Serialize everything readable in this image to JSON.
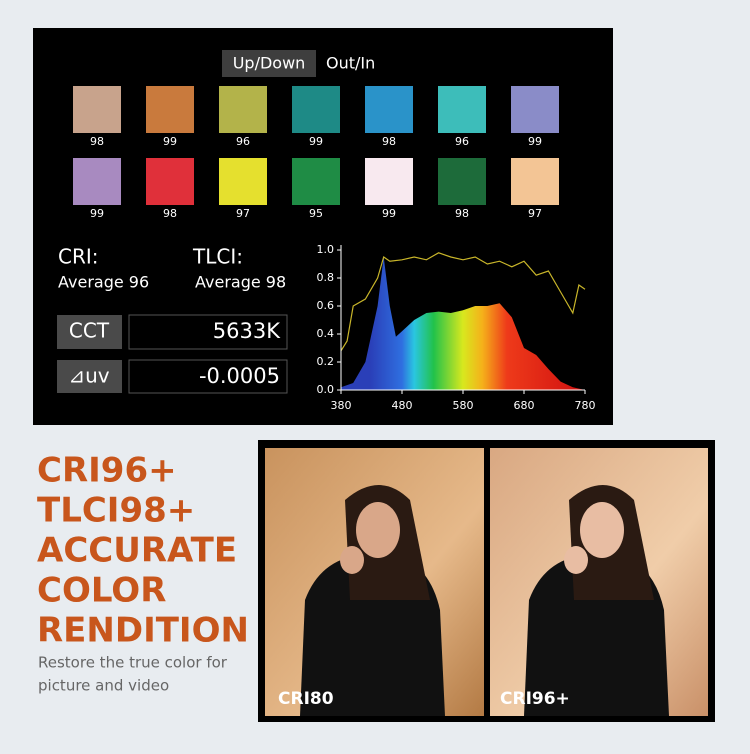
{
  "tabs": [
    "Up/Down",
    "Out/In"
  ],
  "swatches": [
    [
      {
        "color": "#c8a38c",
        "value": "98"
      },
      {
        "color": "#c97a3d",
        "value": "99"
      },
      {
        "color": "#b3b34a",
        "value": "96"
      },
      {
        "color": "#1e8a86",
        "value": "99"
      },
      {
        "color": "#2a93c9",
        "value": "98"
      },
      {
        "color": "#3dbdba",
        "value": "96"
      },
      {
        "color": "#8a8cc8",
        "value": "99"
      }
    ],
    [
      {
        "color": "#a88ac0",
        "value": "99"
      },
      {
        "color": "#e0303a",
        "value": "98"
      },
      {
        "color": "#e5e02e",
        "value": "97"
      },
      {
        "color": "#1f8c45",
        "value": "95"
      },
      {
        "color": "#f8e9ef",
        "value": "99"
      },
      {
        "color": "#1d6b3a",
        "value": "98"
      },
      {
        "color": "#f3c595",
        "value": "97"
      }
    ]
  ],
  "cri": {
    "label": "CRI:",
    "average": "Average 96"
  },
  "tlci": {
    "label": "TLCI:",
    "average": "Average 98"
  },
  "cct": {
    "label": "CCT",
    "value": "5633K"
  },
  "duv": {
    "label": "⊿uv",
    "value": "-0.0005"
  },
  "chart_data": {
    "type": "spectrum",
    "xlim": [
      380,
      780
    ],
    "ylim": [
      0,
      1.0
    ],
    "xticks": [
      380,
      480,
      580,
      680,
      780
    ],
    "yticks": [
      {
        "value": 0,
        "label": "0.0"
      },
      {
        "value": 0.2,
        "label": "0.2"
      },
      {
        "value": 0.4,
        "label": "0.4"
      },
      {
        "value": 0.6,
        "label": "0.6"
      },
      {
        "value": 0.8,
        "label": "0.8"
      },
      {
        "value": 1.0,
        "label": "1.0"
      }
    ],
    "series": [
      {
        "kind": "area",
        "x": [
          380,
          400,
          420,
          440,
          450,
          460,
          470,
          480,
          500,
          520,
          540,
          560,
          580,
          600,
          620,
          640,
          660,
          680,
          700,
          720,
          740,
          760,
          780
        ],
        "values": [
          0.02,
          0.05,
          0.2,
          0.6,
          0.95,
          0.6,
          0.38,
          0.42,
          0.5,
          0.55,
          0.56,
          0.55,
          0.57,
          0.6,
          0.6,
          0.62,
          0.52,
          0.3,
          0.25,
          0.15,
          0.06,
          0.02,
          0.0
        ]
      },
      {
        "kind": "line",
        "color": "#c9b62a",
        "x": [
          380,
          390,
          400,
          420,
          440,
          450,
          460,
          480,
          500,
          520,
          540,
          560,
          580,
          600,
          620,
          640,
          660,
          680,
          700,
          720,
          740,
          760,
          770,
          780
        ],
        "values": [
          0.28,
          0.35,
          0.6,
          0.65,
          0.8,
          0.95,
          0.92,
          0.93,
          0.95,
          0.93,
          0.98,
          0.95,
          0.93,
          0.95,
          0.9,
          0.92,
          0.88,
          0.92,
          0.82,
          0.85,
          0.7,
          0.55,
          0.75,
          0.72
        ]
      }
    ]
  },
  "headline": [
    "CRI96+",
    "TLCI98+",
    "ACCURATE",
    "COLOR",
    "RENDITION"
  ],
  "subtitle": [
    "Restore the true color for",
    "picture and video"
  ],
  "photos": [
    "CRI80",
    "CRI96+"
  ]
}
